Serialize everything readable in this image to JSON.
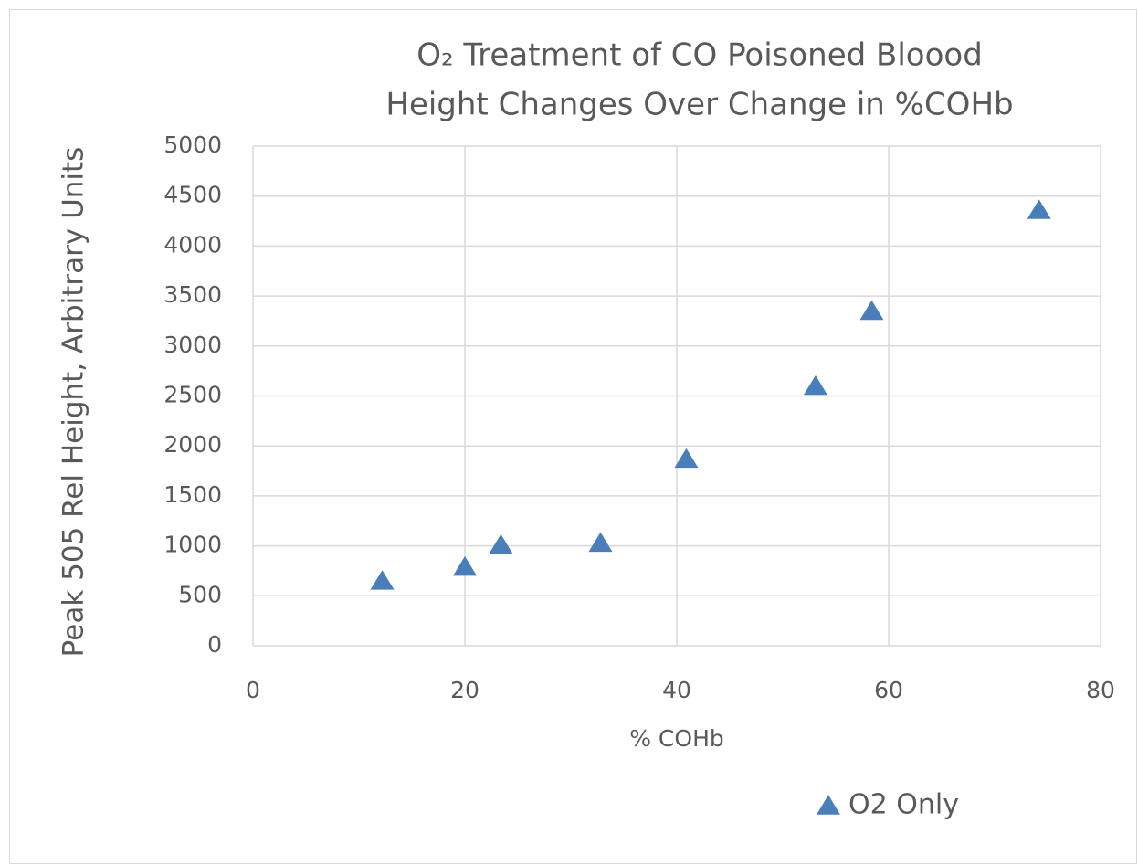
{
  "chart_data": {
    "type": "scatter",
    "title": "O₂ Treatment of CO Poisoned Bloood",
    "subtitle": "Height Changes Over Change in %COHb",
    "x_label": "% COHb",
    "y_label": "Peak 505 Rel Height, Arbitrary Units",
    "x": [
      12.2,
      20.0,
      23.4,
      32.8,
      40.9,
      53.1,
      58.4,
      74.2
    ],
    "series": [
      {
        "name": "O2 Only",
        "color": "#4a7ebb",
        "values": [
          650,
          790,
          1010,
          1030,
          1870,
          2600,
          3350,
          4360
        ]
      }
    ],
    "xlim": [
      0,
      80
    ],
    "xticks": [
      0,
      20,
      40,
      60,
      80
    ],
    "ylim": [
      0,
      5000
    ],
    "yticks": [
      0,
      500,
      1000,
      1500,
      2000,
      2500,
      3000,
      3500,
      4000,
      4500,
      5000
    ],
    "grid": true,
    "legend": "bottom"
  }
}
